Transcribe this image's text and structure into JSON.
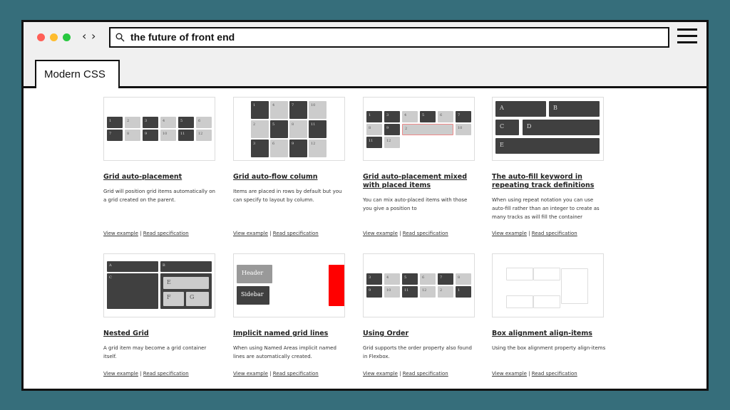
{
  "browser": {
    "search_query": "the future of front end",
    "tab_label": "Modern CSS",
    "traffic_lights": [
      "#ff5f57",
      "#febc2e",
      "#28c840"
    ],
    "back": "‹",
    "forward": "›"
  },
  "cards": [
    {
      "title": "Grid auto-placement",
      "desc": "Grid will position grid items automatically on a grid created on the parent.",
      "view": "View example",
      "spec": "Read specification",
      "items": [
        "1",
        "2",
        "3",
        "4",
        "5",
        "6",
        "7",
        "8",
        "9",
        "10",
        "11",
        "12"
      ]
    },
    {
      "title": "Grid auto-flow column",
      "desc": "Items are placed in rows by default but you can specify to layout by column.",
      "view": "View example",
      "spec": "Read specification",
      "items": [
        "1",
        "4",
        "7",
        "10",
        "2",
        "5",
        "8",
        "11",
        "3",
        "6",
        "9",
        "12"
      ]
    },
    {
      "title": "Grid auto-placement mixed with placed items",
      "desc": "You can mix auto-placed items with those you give a position to",
      "view": "View example",
      "spec": "Read specification",
      "items": [
        "1",
        "3",
        "4",
        "5",
        "6",
        "7",
        "8",
        "9",
        "2",
        "10",
        "11",
        "12"
      ]
    },
    {
      "title": "The auto-fill keyword in repeating track definitions",
      "desc": "When using repeat notation you can use auto-fill rather than an integer to create as many tracks as will fill the container",
      "view": "View example",
      "spec": "Read specification",
      "items": [
        "A",
        "B",
        "C",
        "D",
        "E"
      ]
    },
    {
      "title": "Nested Grid",
      "desc": "A grid item may become a grid container itself.",
      "view": "View example",
      "spec": "Read specification",
      "items": [
        "A",
        "B",
        "C",
        "E",
        "F",
        "G"
      ]
    },
    {
      "title": "Implicit named grid lines",
      "desc": "When using Named Areas implicit named lines are automatically created.",
      "view": "View example",
      "spec": "Read specification",
      "items": [
        "Header",
        "Sidebar"
      ]
    },
    {
      "title": "Using Order",
      "desc": "Grid supports the order property also found in Flexbox.",
      "view": "View example",
      "spec": "Read specification",
      "items": [
        "3",
        "4",
        "5",
        "6",
        "7",
        "8",
        "9",
        "10",
        "11",
        "12",
        "2",
        "1"
      ]
    },
    {
      "title": "Box alignment align-items",
      "desc": "Using the box alignment property align-items",
      "view": "View example",
      "spec": "Read specification",
      "items": []
    }
  ],
  "colors": {
    "background": "#366e7b",
    "dark_item": "#404040",
    "light_item": "#cccccc",
    "overlay": "#ff0000"
  }
}
